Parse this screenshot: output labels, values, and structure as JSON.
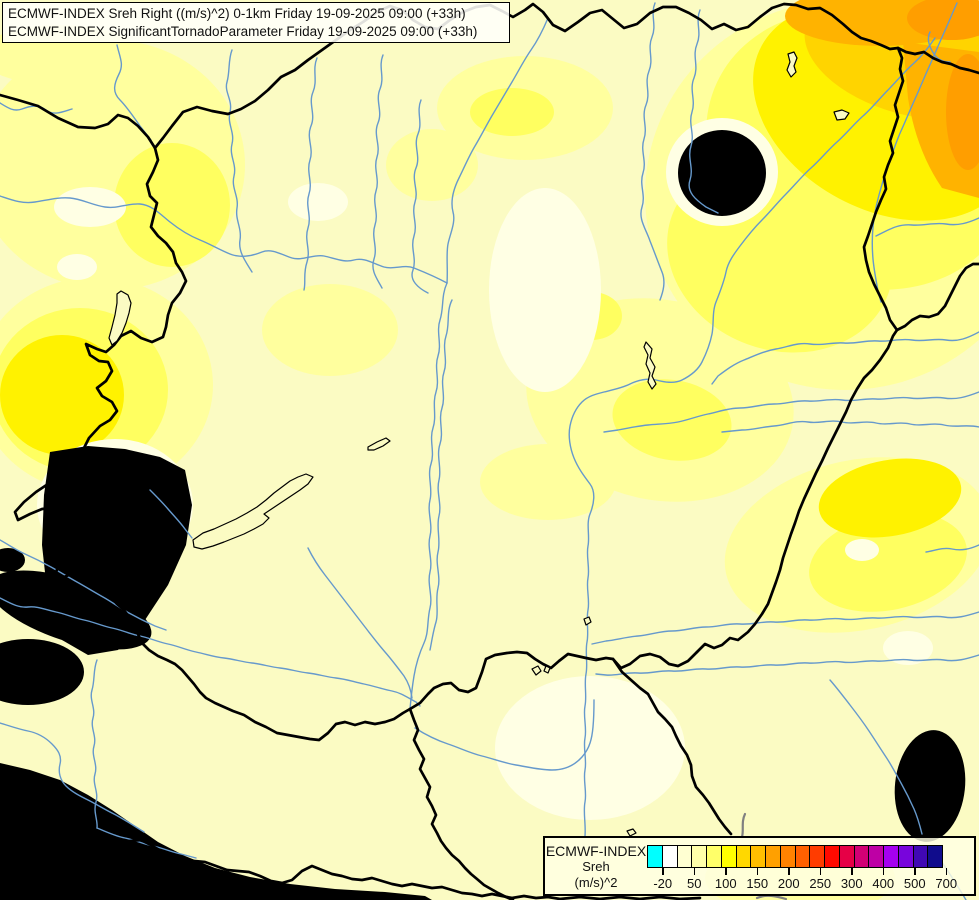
{
  "header": {
    "line1": "ECMWF-INDEX Sreh Right ((m/s)^2) 0-1km Friday 19-09-2025 09:00 (+33h)",
    "line2": "ECMWF-INDEX SignificantTornadoParameter Friday 19-09-2025 09:00 (+33h)"
  },
  "legend": {
    "title_lines": [
      "ECMWF-INDEX",
      "Sreh",
      "(m/s)^2"
    ],
    "tick_labels": [
      "-20",
      "50",
      "100",
      "150",
      "200",
      "250",
      "300",
      "400",
      "500",
      "700"
    ],
    "colors": [
      "#00FFFF",
      "#FFFFFF",
      "#FFFFD2",
      "#FFFFAA",
      "#FFFF69",
      "#FFFF00",
      "#FFD800",
      "#FFBE00",
      "#FFA000",
      "#FF8200",
      "#FF6000",
      "#FF3C00",
      "#FF0A00",
      "#E60046",
      "#D20075",
      "#BE00A5",
      "#A500F0",
      "#7805DC",
      "#4008B4",
      "#100C8C"
    ]
  },
  "map_colors": {
    "base": "#FBFBC3",
    "cream": "#FFFFE4",
    "white": "#FFFFFF",
    "cyan": "#00FFFF",
    "y1": "#FFFF9E",
    "y2": "#FFFF60",
    "y3": "#FFF200",
    "gold": "#FFD400",
    "or": "#FFB300",
    "or2": "#FF9E00",
    "river": "#6699CC",
    "border": "#000000",
    "gray": "#808080"
  }
}
